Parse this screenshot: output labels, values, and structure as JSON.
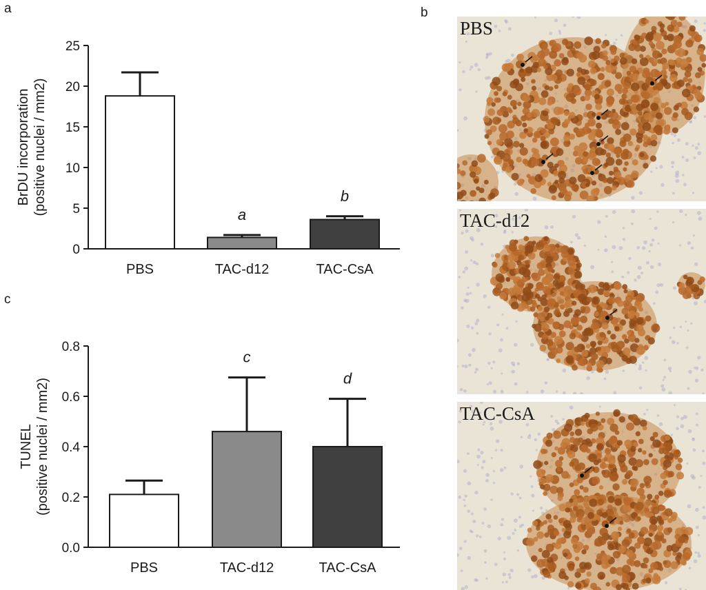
{
  "panels": {
    "a": "a",
    "b": "b",
    "c": "c"
  },
  "micrographs": [
    {
      "label": "PBS"
    },
    {
      "label": "TAC-d12"
    },
    {
      "label": "TAC-CsA"
    }
  ],
  "colors": {
    "pbs": "#ffffff",
    "tac_d12": "#8a8a8a",
    "tac_csa": "#404040",
    "axis": "#1a1a1a",
    "stain_brown": "#a65a1f",
    "tissue_bg": "#e9e4d6"
  },
  "chart_data": [
    {
      "type": "bar",
      "categories": [
        "PBS",
        "TAC-d12",
        "TAC-CsA"
      ],
      "series": [
        {
          "values": [
            18.8,
            1.4,
            3.6
          ],
          "errors": [
            2.9,
            0.3,
            0.4
          ]
        }
      ],
      "annotations": [
        "",
        "a",
        "b"
      ],
      "ylabel": "BrDU incorporation",
      "ylabel2": "(positive nuclei / mm2)",
      "ylim": [
        0,
        25
      ],
      "yticks": [
        "0",
        "5",
        "10",
        "15",
        "20",
        "25"
      ],
      "yticks_values": [
        0,
        5,
        10,
        15,
        20,
        25
      ],
      "bar_colors": [
        "#ffffff",
        "#8a8a8a",
        "#404040"
      ],
      "grid": false
    },
    {
      "type": "bar",
      "categories": [
        "PBS",
        "TAC-d12",
        "TAC-CsA"
      ],
      "series": [
        {
          "values": [
            0.21,
            0.46,
            0.4
          ],
          "errors": [
            0.055,
            0.215,
            0.19
          ]
        }
      ],
      "annotations": [
        "",
        "c",
        "d"
      ],
      "ylabel": "TUNEL",
      "ylabel2": "(positive nuclei / mm2)",
      "ylim": [
        0,
        0.8
      ],
      "yticks": [
        "0.0",
        "0.2",
        "0.4",
        "0.6",
        "0.8"
      ],
      "yticks_values": [
        0,
        0.2,
        0.4,
        0.6,
        0.8
      ],
      "bar_colors": [
        "#ffffff",
        "#8a8a8a",
        "#404040"
      ],
      "grid": false
    }
  ]
}
